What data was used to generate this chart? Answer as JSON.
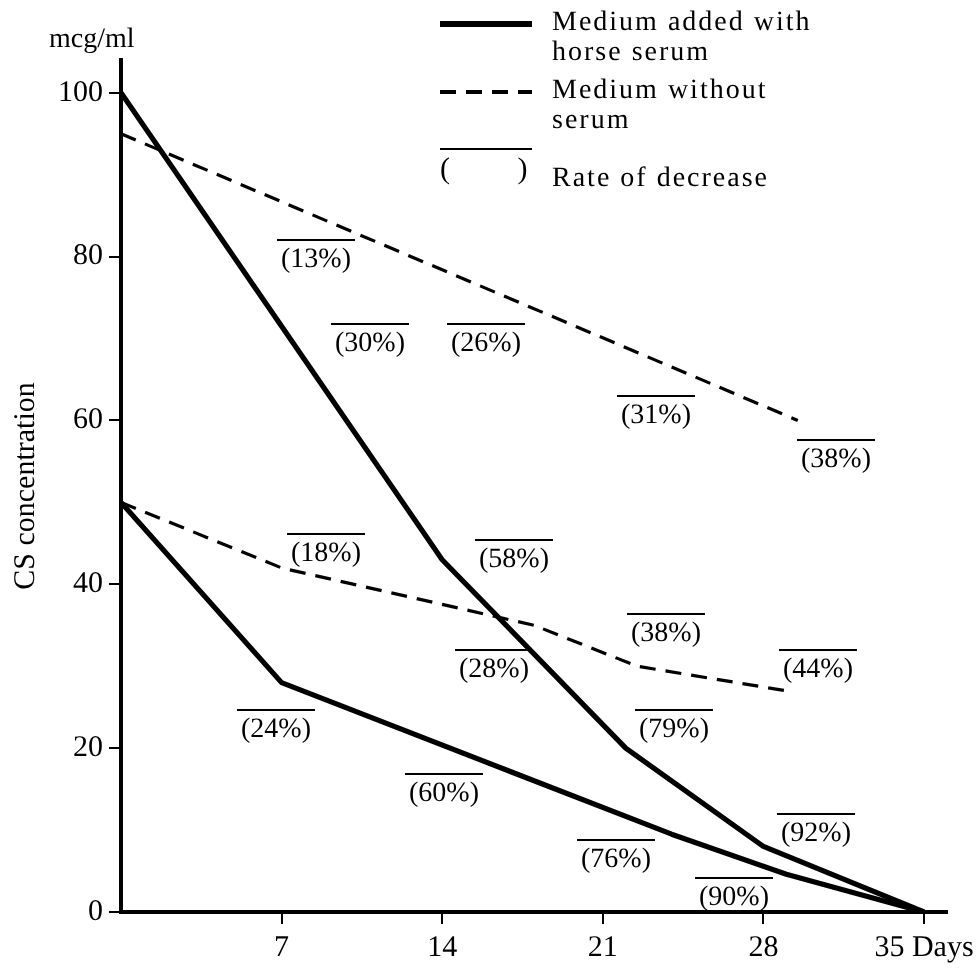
{
  "chart_data": {
    "type": "line",
    "ylabel": "CS concentration",
    "xlim": [
      0,
      36
    ],
    "ylim": [
      0,
      104
    ],
    "xticks": [
      7,
      14,
      21,
      28,
      {
        "value": 35,
        "label": "35 Days"
      }
    ],
    "yticks": [
      0,
      20,
      40,
      60,
      80,
      100
    ],
    "grid": false,
    "legend": "top right",
    "marker": "none",
    "series": [
      {
        "name": "Medium added with horse serum",
        "color": "#000000",
        "line_style": "solid",
        "x": [
          0,
          14,
          22,
          28,
          35
        ],
        "values": [
          100,
          43,
          20,
          8,
          0
        ]
      },
      {
        "name": "Medium without serum",
        "color": "#000000",
        "line_style": "dashed",
        "x": [
          0,
          29.5
        ],
        "values": [
          95,
          60
        ]
      },
      {
        "color": "#000000",
        "line_style": "solid",
        "x": [
          0,
          7,
          24,
          29,
          35
        ],
        "values": [
          50,
          28,
          9.5,
          4.6,
          0
        ]
      },
      {
        "color": "#000000",
        "line_style": "dashed",
        "x": [
          0,
          7,
          18,
          22.5,
          29
        ],
        "values": [
          50,
          42,
          35,
          30,
          27
        ]
      }
    ],
    "annotations": [
      "mcg/ml",
      "( )",
      "Rate of decrease",
      "(13%)",
      "(30%)",
      "(26%)",
      "(31%)",
      "(38%)",
      "(18%)",
      "(58%)",
      "(28%)",
      "(38%)",
      "(44%)",
      "(24%)",
      "(79%)",
      "(60%)",
      "(92%)",
      "(76%)",
      "(90%)"
    ]
  }
}
